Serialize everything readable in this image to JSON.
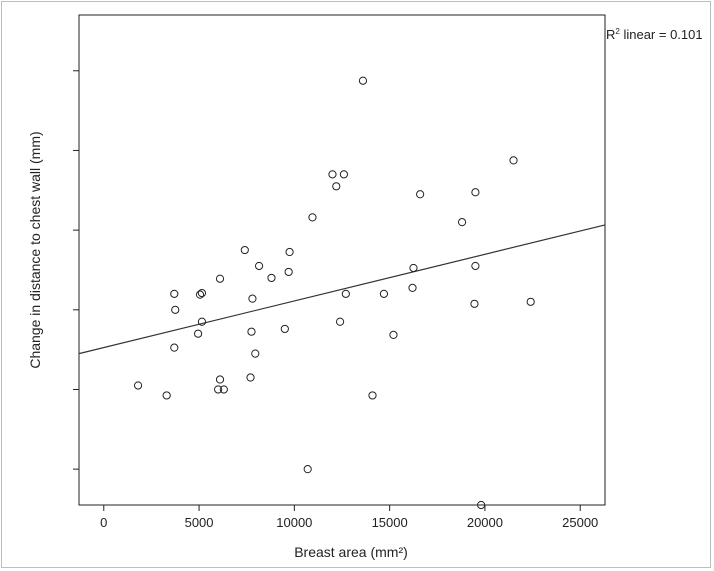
{
  "chart_data": {
    "type": "scatter",
    "xlabel": "Breast area (mm²)",
    "ylabel": "Change in distance to chest wall (mm)",
    "annotation": {
      "prefix": "R",
      "superscript": "2",
      "text": " linear = 0.101"
    },
    "xlim": [
      -1300,
      26300
    ],
    "ylim": [
      -4.9,
      7.4
    ],
    "xticks": [
      0,
      5000,
      10000,
      15000,
      20000,
      25000
    ],
    "xtick_labels": [
      "0",
      "5000",
      "10000",
      "15000",
      "20000",
      "25000"
    ],
    "yticks": [
      -4,
      -2,
      0,
      2,
      4,
      6
    ],
    "ytick_labels": [
      "",
      "",
      "",
      "",
      "",
      ""
    ],
    "grid": false,
    "fit_line": {
      "x": [
        -1300,
        26300
      ],
      "y": [
        -1.1,
        2.13
      ]
    },
    "points": [
      {
        "x": 1800,
        "y": -1.9
      },
      {
        "x": 3300,
        "y": -2.15
      },
      {
        "x": 3700,
        "y": 0.4
      },
      {
        "x": 3750,
        "y": 0.0
      },
      {
        "x": 3700,
        "y": -0.95
      },
      {
        "x": 4950,
        "y": -0.6
      },
      {
        "x": 5050,
        "y": 0.38
      },
      {
        "x": 5150,
        "y": 0.42
      },
      {
        "x": 5150,
        "y": -0.3
      },
      {
        "x": 6000,
        "y": -2.0
      },
      {
        "x": 6100,
        "y": -1.75
      },
      {
        "x": 6100,
        "y": 0.78
      },
      {
        "x": 6300,
        "y": -2.0
      },
      {
        "x": 7400,
        "y": 1.5
      },
      {
        "x": 7700,
        "y": -1.7
      },
      {
        "x": 7750,
        "y": -0.55
      },
      {
        "x": 7800,
        "y": 0.28
      },
      {
        "x": 7950,
        "y": -1.1
      },
      {
        "x": 8150,
        "y": 1.1
      },
      {
        "x": 8800,
        "y": 0.8
      },
      {
        "x": 9500,
        "y": -0.48
      },
      {
        "x": 9700,
        "y": 0.95
      },
      {
        "x": 9750,
        "y": 1.45
      },
      {
        "x": 10700,
        "y": -4.0
      },
      {
        "x": 10950,
        "y": 2.32
      },
      {
        "x": 12000,
        "y": 3.4
      },
      {
        "x": 12200,
        "y": 3.1
      },
      {
        "x": 12400,
        "y": -0.3
      },
      {
        "x": 12600,
        "y": 3.4
      },
      {
        "x": 12700,
        "y": 0.4
      },
      {
        "x": 13600,
        "y": 5.75
      },
      {
        "x": 14100,
        "y": -2.15
      },
      {
        "x": 14700,
        "y": 0.4
      },
      {
        "x": 15200,
        "y": -0.63
      },
      {
        "x": 16200,
        "y": 0.55
      },
      {
        "x": 16250,
        "y": 1.05
      },
      {
        "x": 16600,
        "y": 2.9
      },
      {
        "x": 18800,
        "y": 2.2
      },
      {
        "x": 19450,
        "y": 0.15
      },
      {
        "x": 19500,
        "y": 1.1
      },
      {
        "x": 19500,
        "y": 2.95
      },
      {
        "x": 19800,
        "y": -4.9
      },
      {
        "x": 21500,
        "y": 3.75
      },
      {
        "x": 22400,
        "y": 0.2
      }
    ]
  }
}
